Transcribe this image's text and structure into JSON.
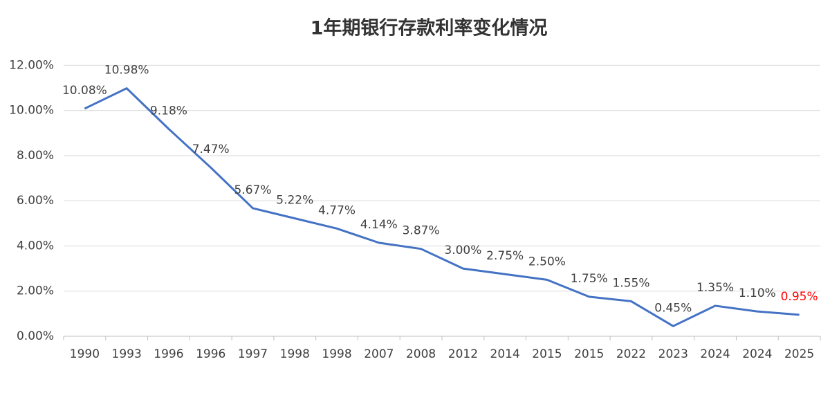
{
  "chart_data": {
    "type": "line",
    "title": "1年期银行存款利率变化情况",
    "categories": [
      "1990",
      "1993",
      "1996",
      "1996",
      "1997",
      "1998",
      "1998",
      "2007",
      "2008",
      "2012",
      "2014",
      "2015",
      "2015",
      "2022",
      "2023",
      "2024",
      "2024",
      "2025"
    ],
    "series": [
      {
        "name": "1年期银行存款利率",
        "color": "#4472c4",
        "values": [
          10.08,
          10.98,
          9.18,
          7.47,
          5.67,
          5.22,
          4.77,
          4.14,
          3.87,
          3.0,
          2.75,
          2.5,
          1.75,
          1.55,
          0.45,
          1.35,
          1.1,
          0.95
        ],
        "value_labels": [
          "10.08%",
          "10.98%",
          "9.18%",
          "7.47%",
          "5.67%",
          "5.22%",
          "4.77%",
          "4.14%",
          "3.87%",
          "3.00%",
          "2.75%",
          "2.50%",
          "1.75%",
          "1.55%",
          "0.45%",
          "1.35%",
          "1.10%",
          "0.95%"
        ],
        "value_label_colors": [
          "#404040",
          "#404040",
          "#404040",
          "#404040",
          "#404040",
          "#404040",
          "#404040",
          "#404040",
          "#404040",
          "#404040",
          "#404040",
          "#404040",
          "#404040",
          "#404040",
          "#404040",
          "#404040",
          "#404040",
          "#ff0000"
        ]
      }
    ],
    "ylim": [
      0,
      12.5
    ],
    "yticks": [
      {
        "value": 0,
        "label": "0.00%"
      },
      {
        "value": 2,
        "label": "2.00%"
      },
      {
        "value": 4,
        "label": "4.00%"
      },
      {
        "value": 6,
        "label": "6.00%"
      },
      {
        "value": 8,
        "label": "8.00%"
      },
      {
        "value": 10,
        "label": "10.00%"
      },
      {
        "value": 12,
        "label": "12.00%"
      }
    ],
    "grid": true
  }
}
